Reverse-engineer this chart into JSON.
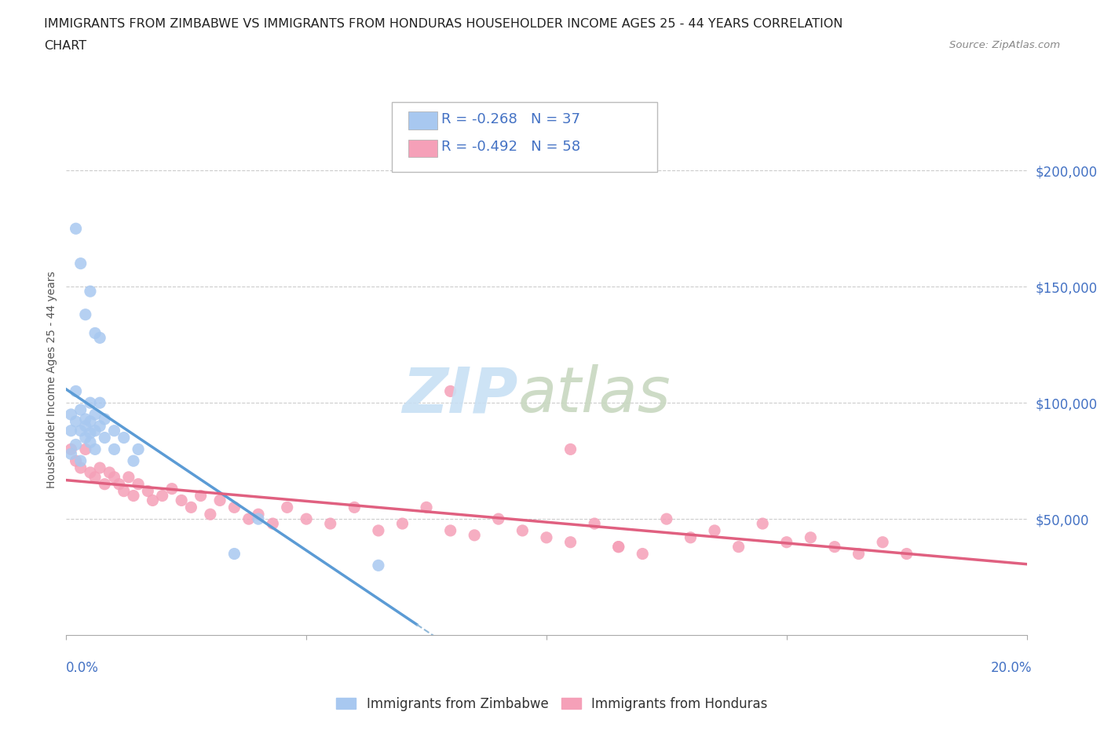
{
  "title_line1": "IMMIGRANTS FROM ZIMBABWE VS IMMIGRANTS FROM HONDURAS HOUSEHOLDER INCOME AGES 25 - 44 YEARS CORRELATION",
  "title_line2": "CHART",
  "source": "Source: ZipAtlas.com",
  "ylabel": "Householder Income Ages 25 - 44 years",
  "ytick_labels": [
    "$50,000",
    "$100,000",
    "$150,000",
    "$200,000"
  ],
  "ytick_values": [
    50000,
    100000,
    150000,
    200000
  ],
  "legend_label_1": "Immigrants from Zimbabwe",
  "legend_label_2": "Immigrants from Honduras",
  "R_zimbabwe": -0.268,
  "N_zimbabwe": 37,
  "R_honduras": -0.492,
  "N_honduras": 58,
  "color_zimbabwe": "#a8c8f0",
  "color_honduras": "#f5a0b8",
  "color_line_zimbabwe": "#5b9bd5",
  "color_line_honduras": "#e06080",
  "color_dashed": "#90b8d8",
  "xmin": 0.0,
  "xmax": 0.2,
  "ymin": 0,
  "ymax": 220000,
  "zimbabwe_x": [
    0.001,
    0.001,
    0.001,
    0.002,
    0.002,
    0.002,
    0.003,
    0.003,
    0.003,
    0.004,
    0.004,
    0.004,
    0.005,
    0.005,
    0.005,
    0.005,
    0.006,
    0.006,
    0.006,
    0.007,
    0.007,
    0.008,
    0.008,
    0.01,
    0.01,
    0.012,
    0.014,
    0.015,
    0.002,
    0.003,
    0.004,
    0.005,
    0.006,
    0.007,
    0.035,
    0.04,
    0.065
  ],
  "zimbabwe_y": [
    88000,
    95000,
    78000,
    92000,
    105000,
    82000,
    88000,
    97000,
    75000,
    90000,
    85000,
    93000,
    100000,
    87000,
    83000,
    92000,
    88000,
    95000,
    80000,
    90000,
    100000,
    85000,
    93000,
    80000,
    88000,
    85000,
    75000,
    80000,
    175000,
    160000,
    138000,
    148000,
    130000,
    128000,
    35000,
    50000,
    30000
  ],
  "honduras_x": [
    0.001,
    0.002,
    0.003,
    0.004,
    0.005,
    0.006,
    0.007,
    0.008,
    0.009,
    0.01,
    0.011,
    0.012,
    0.013,
    0.014,
    0.015,
    0.017,
    0.018,
    0.02,
    0.022,
    0.024,
    0.026,
    0.028,
    0.03,
    0.032,
    0.035,
    0.038,
    0.04,
    0.043,
    0.046,
    0.05,
    0.055,
    0.06,
    0.065,
    0.07,
    0.075,
    0.08,
    0.085,
    0.09,
    0.095,
    0.1,
    0.105,
    0.11,
    0.115,
    0.12,
    0.125,
    0.13,
    0.135,
    0.14,
    0.145,
    0.15,
    0.155,
    0.16,
    0.165,
    0.17,
    0.115,
    0.08,
    0.105,
    0.175
  ],
  "honduras_y": [
    80000,
    75000,
    72000,
    80000,
    70000,
    68000,
    72000,
    65000,
    70000,
    68000,
    65000,
    62000,
    68000,
    60000,
    65000,
    62000,
    58000,
    60000,
    63000,
    58000,
    55000,
    60000,
    52000,
    58000,
    55000,
    50000,
    52000,
    48000,
    55000,
    50000,
    48000,
    55000,
    45000,
    48000,
    55000,
    45000,
    43000,
    50000,
    45000,
    42000,
    40000,
    48000,
    38000,
    35000,
    50000,
    42000,
    45000,
    38000,
    48000,
    40000,
    42000,
    38000,
    35000,
    40000,
    38000,
    105000,
    80000,
    35000
  ]
}
